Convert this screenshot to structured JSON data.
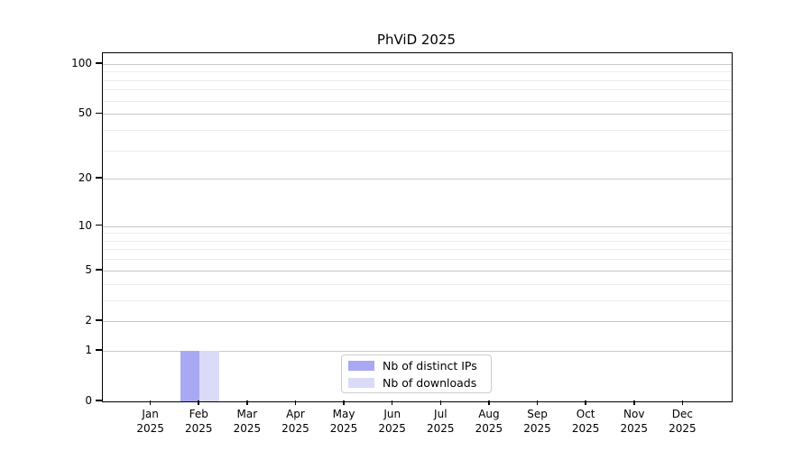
{
  "chart_data": {
    "type": "bar",
    "title": "PhViD 2025",
    "categories": [
      {
        "month": "Jan",
        "year": "2025"
      },
      {
        "month": "Feb",
        "year": "2025"
      },
      {
        "month": "Mar",
        "year": "2025"
      },
      {
        "month": "Apr",
        "year": "2025"
      },
      {
        "month": "May",
        "year": "2025"
      },
      {
        "month": "Jun",
        "year": "2025"
      },
      {
        "month": "Jul",
        "year": "2025"
      },
      {
        "month": "Aug",
        "year": "2025"
      },
      {
        "month": "Sep",
        "year": "2025"
      },
      {
        "month": "Oct",
        "year": "2025"
      },
      {
        "month": "Nov",
        "year": "2025"
      },
      {
        "month": "Dec",
        "year": "2025"
      }
    ],
    "series": [
      {
        "name": "Nb of distinct IPs",
        "color": "#a8a8f3",
        "values": [
          0,
          1,
          0,
          0,
          0,
          0,
          0,
          0,
          0,
          0,
          0,
          0
        ]
      },
      {
        "name": "Nb of downloads",
        "color": "#dbdbf7",
        "values": [
          0,
          1,
          0,
          0,
          0,
          0,
          0,
          0,
          0,
          0,
          0,
          0
        ]
      }
    ],
    "xlabel": "",
    "ylabel": "",
    "yscale": "log1p",
    "ylim": [
      0,
      116
    ],
    "yticks": [
      0,
      1,
      2,
      5,
      10,
      20,
      50,
      100
    ],
    "minor_yticks": [
      3,
      4,
      6,
      7,
      8,
      9,
      30,
      40,
      60,
      70,
      80,
      90
    ],
    "grid": "horizontal",
    "legend_position": "lower center"
  }
}
